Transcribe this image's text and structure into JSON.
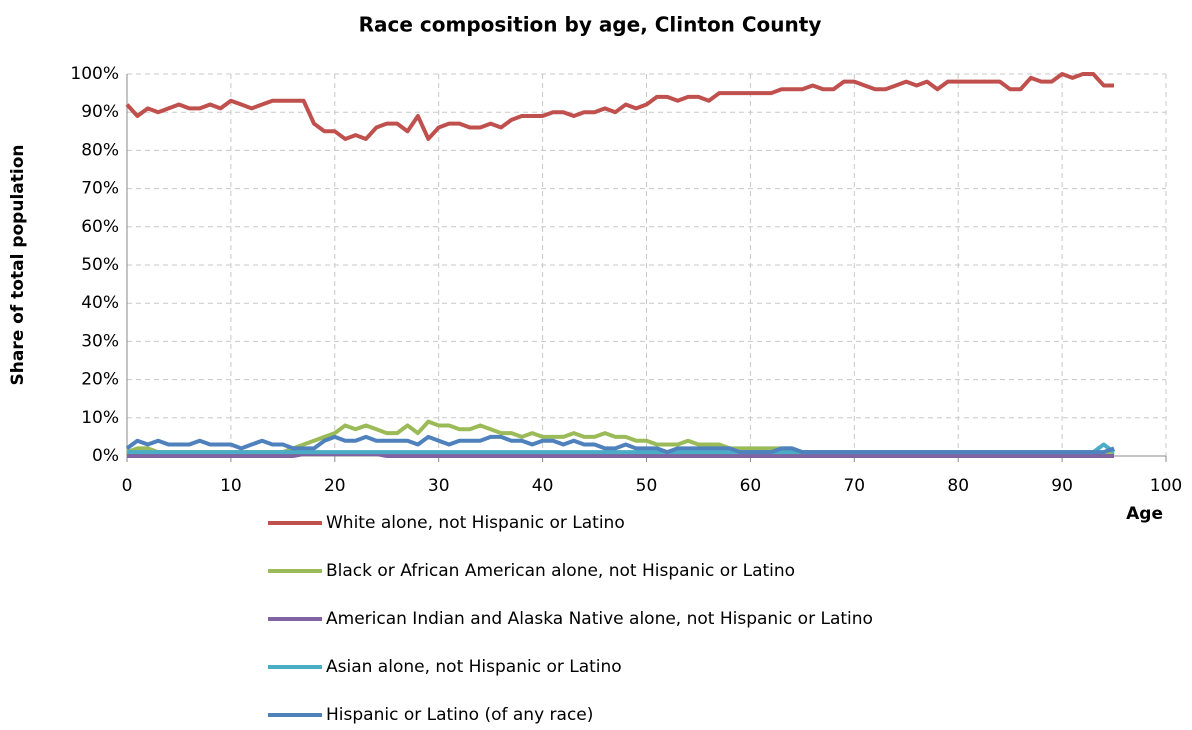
{
  "chart_data": {
    "type": "line",
    "title": "Race composition by age, Clinton County",
    "x_label": "Age",
    "y_label": "Share of total population",
    "x": [
      0,
      1,
      2,
      3,
      4,
      5,
      6,
      7,
      8,
      9,
      10,
      11,
      12,
      13,
      14,
      15,
      16,
      17,
      18,
      19,
      20,
      21,
      22,
      23,
      24,
      25,
      26,
      27,
      28,
      29,
      30,
      31,
      32,
      33,
      34,
      35,
      36,
      37,
      38,
      39,
      40,
      41,
      42,
      43,
      44,
      45,
      46,
      47,
      48,
      49,
      50,
      51,
      52,
      53,
      54,
      55,
      56,
      57,
      58,
      59,
      60,
      61,
      62,
      63,
      64,
      65,
      66,
      67,
      68,
      69,
      70,
      71,
      72,
      73,
      74,
      75,
      76,
      77,
      78,
      79,
      80,
      81,
      82,
      83,
      84,
      85,
      86,
      87,
      88,
      89,
      90,
      91,
      92,
      93,
      94,
      95
    ],
    "xlim": [
      0,
      100
    ],
    "xticks": [
      0,
      10,
      20,
      30,
      40,
      50,
      60,
      70,
      80,
      90,
      100
    ],
    "ylim": [
      0,
      100
    ],
    "yticks": [
      {
        "value": 0,
        "label": "0%"
      },
      {
        "value": 10,
        "label": "10%"
      },
      {
        "value": 20,
        "label": "20%"
      },
      {
        "value": 30,
        "label": "30%"
      },
      {
        "value": 40,
        "label": "40%"
      },
      {
        "value": 50,
        "label": "50%"
      },
      {
        "value": 60,
        "label": "60%"
      },
      {
        "value": 70,
        "label": "70%"
      },
      {
        "value": 80,
        "label": "80%"
      },
      {
        "value": 90,
        "label": "90%"
      },
      {
        "value": 100,
        "label": "100%"
      }
    ],
    "grid": true,
    "legend": "bottom",
    "series": [
      {
        "name": "White alone, not Hispanic or Latino",
        "color": "#c0504d",
        "values": [
          92,
          89,
          91,
          90,
          91,
          92,
          91,
          91,
          92,
          91,
          93,
          92,
          91,
          92,
          93,
          93,
          93,
          93,
          87,
          85,
          85,
          83,
          84,
          83,
          86,
          87,
          87,
          85,
          89,
          83,
          86,
          87,
          87,
          86,
          86,
          87,
          86,
          88,
          89,
          89,
          89,
          90,
          90,
          89,
          90,
          90,
          91,
          90,
          92,
          91,
          92,
          94,
          94,
          93,
          94,
          94,
          93,
          95,
          95,
          95,
          95,
          95,
          95,
          96,
          96,
          96,
          97,
          96,
          96,
          98,
          98,
          97,
          96,
          96,
          97,
          98,
          97,
          98,
          96,
          98,
          98,
          98,
          98,
          98,
          98,
          96,
          96,
          99,
          98,
          98,
          100,
          99,
          100,
          100,
          97,
          97
        ]
      },
      {
        "name": "Black or African American alone, not Hispanic or Latino",
        "color": "#9bbb59",
        "values": [
          1,
          2,
          2,
          1,
          1,
          1,
          1,
          1,
          1,
          1,
          1,
          1,
          1,
          1,
          1,
          1,
          2,
          3,
          4,
          5,
          6,
          8,
          7,
          8,
          7,
          6,
          6,
          8,
          6,
          9,
          8,
          8,
          7,
          7,
          8,
          7,
          6,
          6,
          5,
          6,
          5,
          5,
          5,
          6,
          5,
          5,
          6,
          5,
          5,
          4,
          4,
          3,
          3,
          3,
          4,
          3,
          3,
          3,
          2,
          2,
          2,
          2,
          2,
          2,
          2,
          1,
          1,
          1,
          1,
          1,
          1,
          1,
          1,
          1,
          1,
          1,
          1,
          1,
          1,
          1,
          1,
          1,
          1,
          1,
          0,
          0,
          1,
          0,
          0,
          0,
          0,
          0,
          0,
          0,
          0,
          1
        ]
      },
      {
        "name": "American Indian and Alaska Native alone, not Hispanic or Latino",
        "color": "#8064a2",
        "values": [
          0,
          0,
          0,
          0,
          0,
          0,
          0,
          0,
          0,
          0,
          0,
          0,
          0,
          0,
          0,
          0,
          0,
          0.5,
          0.5,
          0.5,
          0.5,
          0.5,
          0.5,
          0.5,
          0.5,
          0,
          0,
          0,
          0,
          0,
          0,
          0,
          0,
          0,
          0,
          0,
          0,
          0,
          0,
          0,
          0,
          0,
          0,
          0,
          0,
          0,
          0,
          0,
          0,
          0,
          0,
          0,
          0,
          0,
          0,
          0,
          0,
          0,
          0,
          0,
          0,
          0,
          0,
          0,
          0,
          0,
          0,
          0,
          0,
          0,
          0,
          0,
          0,
          0,
          0,
          0,
          0,
          0,
          0,
          0,
          0,
          0,
          0,
          0,
          0,
          0,
          0,
          0,
          0,
          0,
          0,
          0,
          0,
          0,
          0,
          0
        ]
      },
      {
        "name": "Asian alone, not Hispanic or Latino",
        "color": "#4bacc6",
        "values": [
          1,
          1,
          1,
          1,
          1,
          1,
          1,
          1,
          1,
          1,
          1,
          1,
          1,
          1,
          1,
          1,
          1,
          1,
          1,
          1,
          1,
          1,
          1,
          1,
          1,
          1,
          1,
          1,
          1,
          1,
          1,
          1,
          1,
          1,
          1,
          1,
          1,
          1,
          1,
          1,
          1,
          1,
          1,
          1,
          1,
          1,
          1,
          1,
          1,
          1,
          1,
          1,
          1,
          1,
          1,
          1,
          1,
          1,
          1,
          1,
          1,
          1,
          1,
          1,
          1,
          1,
          1,
          1,
          1,
          1,
          1,
          1,
          1,
          1,
          1,
          1,
          1,
          1,
          1,
          1,
          1,
          1,
          1,
          1,
          1,
          1,
          1,
          1,
          1,
          1,
          1,
          1,
          1,
          1,
          3,
          1
        ]
      },
      {
        "name": "Hispanic or Latino (of any race)",
        "color": "#4f81bd",
        "values": [
          2,
          4,
          3,
          4,
          3,
          3,
          3,
          4,
          3,
          3,
          3,
          2,
          3,
          4,
          3,
          3,
          2,
          2,
          2,
          4,
          5,
          4,
          4,
          5,
          4,
          4,
          4,
          4,
          3,
          5,
          4,
          3,
          4,
          4,
          4,
          5,
          5,
          4,
          4,
          3,
          4,
          4,
          3,
          4,
          3,
          3,
          2,
          2,
          3,
          2,
          2,
          2,
          1,
          2,
          2,
          2,
          2,
          2,
          2,
          1,
          1,
          1,
          1,
          2,
          2,
          1,
          1,
          1,
          1,
          1,
          1,
          1,
          1,
          1,
          1,
          1,
          1,
          1,
          1,
          1,
          1,
          1,
          1,
          1,
          1,
          1,
          1,
          1,
          1,
          1,
          1,
          1,
          1,
          1,
          1,
          2
        ]
      }
    ]
  }
}
